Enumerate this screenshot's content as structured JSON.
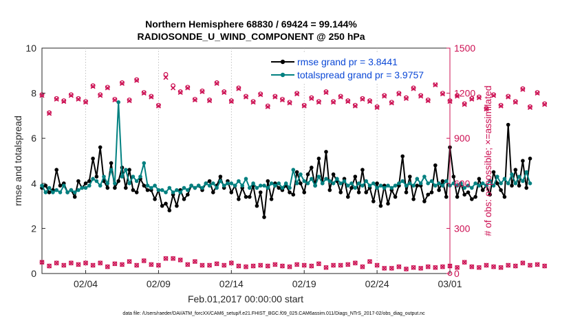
{
  "chart_data": {
    "type": "line",
    "title_lines": [
      "Northern Hemisphere 68830 / 69424 = 99.144%",
      "RADIOSONDE_U_WIND_COMPONENT @ 250 hPa"
    ],
    "xlabel": "Feb.01,2017 00:00:00 start",
    "ylabel_left": "rmse and totalspread",
    "ylabel_right": "# of obs: o=possible; ×=assimilated",
    "footer": "data file: /Users/raeder/DAI/ATM_forcXX/CAM6_setup/f.e21.FHIST_BGC.f09_025.CAM6assim.011/Diags_NTrS_2017-02/obs_diag_output.nc",
    "x_range": [
      1.0,
      29.0
    ],
    "ylim_left": [
      0,
      10
    ],
    "ylim_right": [
      0,
      1500
    ],
    "yticks_left": [
      "0",
      "2",
      "4",
      "6",
      "8",
      "10"
    ],
    "yticks_right": [
      "0",
      "300",
      "600",
      "900",
      "1200",
      "1500"
    ],
    "xticks": [
      {
        "value": 4,
        "label": "02/04"
      },
      {
        "value": 9,
        "label": "02/09"
      },
      {
        "value": 14,
        "label": "02/14"
      },
      {
        "value": 19,
        "label": "02/19"
      },
      {
        "value": 24,
        "label": "02/24"
      },
      {
        "value": 29,
        "label": "03/01"
      }
    ],
    "series": [
      {
        "name": "rmse grand pr = 3.8441",
        "color": "#000000",
        "axis": "left",
        "x_start": 1.0,
        "x_step": 0.25,
        "values": [
          3.8,
          3.9,
          3.6,
          3.7,
          4.6,
          3.9,
          4.0,
          3.6,
          3.7,
          3.4,
          4.1,
          3.8,
          4.0,
          4.1,
          5.1,
          4.3,
          5.6,
          4.1,
          3.8,
          4.9,
          3.8,
          4.1,
          4.7,
          3.8,
          4.6,
          3.7,
          3.6,
          4.2,
          3.9,
          3.7,
          3.7,
          3.3,
          3.7,
          3.0,
          3.1,
          2.8,
          3.5,
          3.0,
          3.7,
          3.3,
          3.5,
          3.9,
          3.8,
          3.9,
          3.7,
          4.0,
          4.1,
          3.6,
          3.9,
          4.3,
          3.8,
          4.1,
          3.6,
          3.9,
          3.3,
          3.8,
          3.4,
          3.4,
          3.9,
          3.0,
          3.6,
          2.5,
          4.1,
          3.3,
          4.0,
          3.8,
          3.7,
          3.9,
          3.6,
          3.5,
          4.5,
          4.0,
          3.6,
          4.4,
          4.7,
          3.9,
          5.1,
          4.0,
          5.4,
          3.7,
          4.4,
          4.1,
          3.6,
          4.2,
          3.4,
          3.8,
          4.3,
          3.6,
          4.6,
          3.6,
          3.8,
          3.2,
          4.0,
          3.0,
          3.9,
          3.1,
          3.7,
          3.4,
          3.9,
          5.2,
          3.6,
          4.3,
          3.3,
          3.9,
          3.9,
          3.2,
          3.5,
          3.6,
          4.8,
          3.7,
          4.1,
          3.4,
          5.6,
          4.3,
          3.4,
          4.0,
          3.5,
          3.6,
          3.3,
          3.4,
          4.2,
          3.7,
          3.9,
          3.5,
          4.5,
          4.0,
          3.7,
          3.4,
          6.6,
          3.9,
          4.6,
          3.9,
          5.0,
          3.8,
          5.1
        ]
      },
      {
        "name": "totalspread grand pr = 3.9757",
        "color": "#008080",
        "axis": "left",
        "x_start": 1.0,
        "x_step": 0.25,
        "values": [
          3.9,
          3.6,
          3.8,
          3.6,
          3.7,
          3.6,
          3.9,
          3.6,
          3.7,
          3.6,
          3.7,
          3.8,
          3.8,
          3.9,
          4.2,
          4.1,
          3.9,
          4.3,
          4.0,
          4.6,
          4.0,
          7.6,
          4.3,
          4.6,
          4.0,
          4.3,
          4.1,
          4.3,
          4.9,
          3.9,
          3.8,
          3.9,
          3.7,
          3.7,
          3.6,
          3.8,
          3.6,
          3.7,
          3.6,
          3.8,
          3.7,
          3.9,
          3.8,
          3.9,
          3.8,
          4.0,
          3.9,
          4.0,
          3.8,
          4.1,
          3.9,
          4.0,
          4.0,
          3.9,
          4.1,
          3.9,
          4.2,
          3.8,
          4.0,
          3.8,
          3.9,
          3.9,
          3.8,
          4.0,
          3.9,
          4.0,
          3.8,
          4.0,
          3.8,
          4.6,
          4.0,
          4.4,
          4.1,
          4.0,
          4.2,
          3.9,
          4.3,
          4.0,
          4.2,
          4.1,
          4.0,
          4.2,
          4.0,
          4.1,
          3.9,
          4.0,
          3.8,
          4.0,
          3.9,
          4.1,
          3.9,
          4.0,
          3.8,
          3.9,
          3.8,
          3.9,
          3.8,
          3.9,
          4.0,
          4.1,
          3.9,
          4.0,
          3.9,
          4.2,
          4.0,
          4.3,
          4.0,
          4.1,
          3.9,
          4.0,
          3.9,
          4.1,
          3.9,
          4.0,
          3.9,
          4.0,
          3.8,
          3.9,
          3.8,
          4.0,
          3.9,
          4.0,
          3.9,
          4.1,
          3.9,
          4.3,
          4.0,
          4.2,
          4.0,
          4.4,
          4.0,
          4.3,
          4.1,
          4.5,
          4.0
        ]
      }
    ],
    "obs_possible": {
      "color": "#cc0f52",
      "axis": "right",
      "marker": "circle",
      "x_start": 1.0,
      "x_step": 0.5,
      "upper_values": [
        1190,
        1070,
        1165,
        1150,
        1190,
        1165,
        1145,
        1250,
        1190,
        1240,
        1160,
        1270,
        1155,
        1290,
        1205,
        1180,
        1120,
        1325,
        1250,
        1210,
        1240,
        1160,
        1215,
        1155,
        1270,
        1210,
        1150,
        1235,
        1180,
        1145,
        1195,
        1115,
        1180,
        1160,
        1140,
        1200,
        1120,
        1170,
        1145,
        1210,
        1145,
        1180,
        1150,
        1120,
        1165,
        1150,
        1110,
        1185,
        1140,
        1200,
        1170,
        1235,
        1185,
        1155,
        1260,
        1200,
        1150,
        1185,
        1130,
        1165,
        1175,
        1100,
        1190,
        1120,
        1180,
        1145,
        1230,
        1110,
        1205,
        1130
      ],
      "lower_values": [
        75,
        50,
        70,
        55,
        70,
        60,
        70,
        55,
        70,
        45,
        65,
        60,
        80,
        55,
        85,
        60,
        55,
        100,
        100,
        90,
        60,
        80,
        55,
        55,
        65,
        55,
        70,
        50,
        45,
        50,
        55,
        50,
        60,
        50,
        45,
        60,
        55,
        50,
        65,
        40,
        55,
        55,
        60,
        70,
        45,
        80,
        55,
        35,
        35,
        45,
        30,
        40,
        35,
        45,
        40,
        45,
        50,
        40,
        75,
        45,
        40,
        55,
        45,
        40,
        55,
        50,
        70,
        55,
        60,
        50
      ]
    },
    "obs_assimilated": {
      "color": "#cc0f52",
      "axis": "right",
      "marker": "cross",
      "upper_values": [
        1185,
        1065,
        1160,
        1145,
        1185,
        1160,
        1140,
        1245,
        1185,
        1235,
        1155,
        1265,
        1150,
        1285,
        1200,
        1175,
        1115,
        1305,
        1235,
        1205,
        1235,
        1155,
        1210,
        1150,
        1265,
        1205,
        1145,
        1230,
        1175,
        1140,
        1190,
        1110,
        1175,
        1155,
        1135,
        1195,
        1115,
        1165,
        1140,
        1205,
        1140,
        1175,
        1145,
        1115,
        1160,
        1145,
        1105,
        1180,
        1135,
        1195,
        1165,
        1230,
        1180,
        1150,
        1255,
        1195,
        1145,
        1180,
        1125,
        1160,
        1170,
        1095,
        1185,
        1115,
        1175,
        1140,
        1225,
        1105,
        1200,
        1125
      ],
      "lower_values": [
        75,
        50,
        70,
        55,
        70,
        60,
        70,
        55,
        70,
        45,
        65,
        60,
        80,
        55,
        85,
        60,
        55,
        100,
        100,
        90,
        60,
        80,
        55,
        55,
        65,
        55,
        70,
        50,
        45,
        50,
        55,
        50,
        60,
        50,
        45,
        60,
        55,
        50,
        65,
        40,
        55,
        55,
        60,
        70,
        45,
        80,
        55,
        35,
        35,
        45,
        30,
        40,
        35,
        45,
        40,
        45,
        50,
        40,
        75,
        45,
        40,
        55,
        45,
        40,
        55,
        50,
        70,
        55,
        60,
        50
      ],
      "extra_point": {
        "x": 29.0,
        "value": 0
      }
    },
    "legend": [
      {
        "label": "rmse grand pr = 3.8441",
        "text_color": "#0b48d6",
        "line_color": "#000000"
      },
      {
        "label": "totalspread grand pr = 3.9757",
        "text_color": "#0b48d6",
        "line_color": "#008080"
      }
    ]
  }
}
